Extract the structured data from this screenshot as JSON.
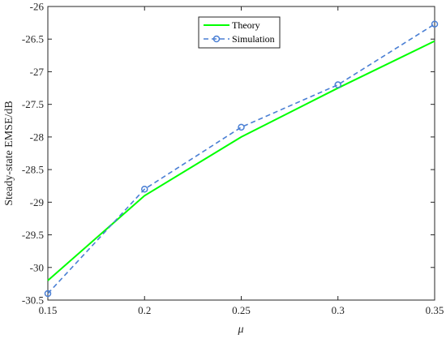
{
  "chart_data": {
    "type": "line",
    "title": "",
    "xlabel": "μ",
    "ylabel": "Steady-state EMSE/dB",
    "xlim": [
      0.15,
      0.35
    ],
    "ylim": [
      -30.5,
      -26
    ],
    "xticks": [
      "0.15",
      "0.2",
      "0.25",
      "0.3",
      "0.35"
    ],
    "yticks": [
      "-26",
      "-26.5",
      "-27",
      "-27.5",
      "-28",
      "-28.5",
      "-29",
      "-29.5",
      "-30",
      "-30.5"
    ],
    "grid": false,
    "legend_position": "top-center",
    "series": [
      {
        "name": "Theory",
        "style": "solid",
        "marker": "none",
        "color": "#00ff00",
        "x": [
          0.15,
          0.2,
          0.25,
          0.3,
          0.35
        ],
        "y": [
          -30.2,
          -28.9,
          -28.0,
          -27.25,
          -26.53
        ]
      },
      {
        "name": "Simulation",
        "style": "dashed",
        "marker": "circle",
        "color": "#4a7fd4",
        "x": [
          0.15,
          0.2,
          0.25,
          0.3,
          0.35
        ],
        "y": [
          -30.4,
          -28.8,
          -27.85,
          -27.2,
          -26.27
        ]
      }
    ]
  }
}
